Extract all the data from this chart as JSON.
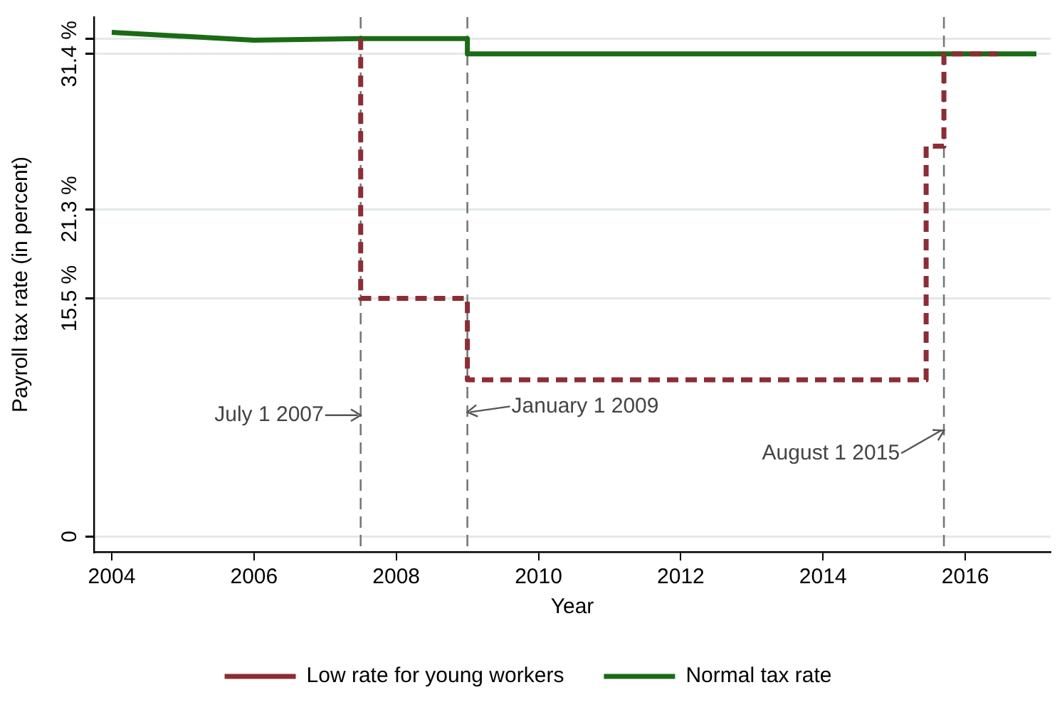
{
  "chart_data": {
    "type": "line",
    "xlabel": "Year",
    "ylabel": "Payroll tax rate (in percent)",
    "xlim": [
      2003.75,
      2017.2
    ],
    "xticks": [
      2004,
      2006,
      2008,
      2010,
      2012,
      2014,
      2016
    ],
    "ylim": [
      -1,
      33.8
    ],
    "yticks": [
      {
        "value": 0,
        "label": "0"
      },
      {
        "value": 15.5,
        "label": "15.5 %"
      },
      {
        "value": 21.3,
        "label": "21.3 %"
      },
      {
        "value": 31.4,
        "label": "31.4 %"
      },
      {
        "value": 32.4,
        "label": null
      }
    ],
    "grid": "y",
    "legend": "bottom",
    "series": [
      {
        "name": "Low rate for young workers",
        "type": "step",
        "color": "#8c2d35",
        "line_style": "dashed",
        "x": [
          2007.5,
          2007.5,
          2009,
          2015.45,
          2015.7,
          2016.45
        ],
        "values": [
          32.4,
          21.3,
          15.5,
          10.2,
          25.4,
          31.4
        ]
      },
      {
        "name": "Normal tax rate",
        "color": "#1a6b14",
        "line_style": "solid",
        "x": [
          2004,
          2006,
          2007.5,
          2009,
          2009,
          2017
        ],
        "values": [
          32.8,
          32.3,
          32.4,
          32.4,
          31.4,
          31.4
        ]
      }
    ],
    "ref_lines": [
      {
        "axis": "x",
        "value": 2007.5,
        "color": "#777777",
        "line_style": "dashed"
      },
      {
        "axis": "x",
        "value": 2009,
        "color": "#777777",
        "line_style": "dashed"
      },
      {
        "axis": "x",
        "value": 2015.7,
        "color": "#777777",
        "line_style": "dashed"
      }
    ],
    "annotations": [
      {
        "text": "July 1 2007",
        "x": 2007.5,
        "y": 7.9
      },
      {
        "text": "January 1 2009",
        "x": 2009,
        "y": 8.1
      },
      {
        "text": "August 1 2015",
        "x": 2015.7,
        "y": 6.9
      }
    ]
  }
}
